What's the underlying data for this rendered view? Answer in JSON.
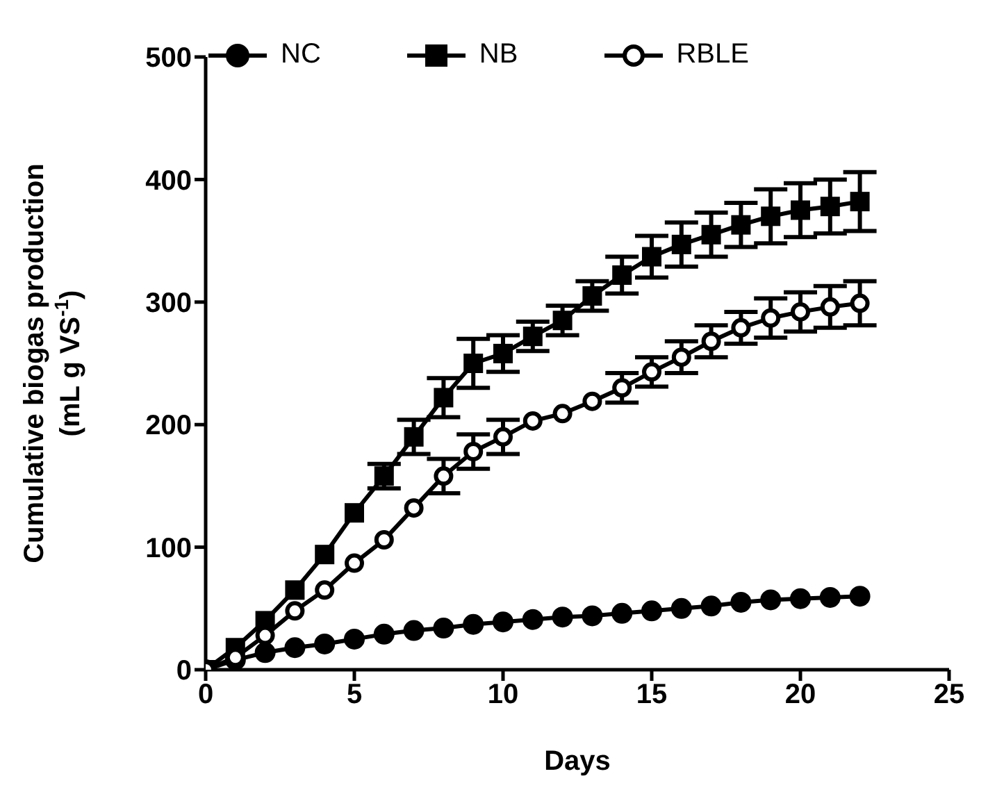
{
  "chart_data": {
    "type": "line",
    "xlabel": "Days",
    "ylabel": "Cumulative biogas production (mL g VS$^{-1}$)",
    "x": [
      0,
      1,
      2,
      3,
      4,
      5,
      6,
      7,
      8,
      9,
      10,
      11,
      12,
      13,
      14,
      15,
      16,
      17,
      18,
      19,
      20,
      21,
      22
    ],
    "series": [
      {
        "name": "NC",
        "color": "#000000",
        "marker": "circle",
        "values": [
          0,
          8,
          14,
          18,
          21,
          25,
          29,
          32,
          34,
          37,
          39,
          41,
          43,
          44,
          46,
          48,
          50,
          52,
          55,
          57,
          58,
          59,
          60
        ]
      },
      {
        "name": "NB",
        "color": "#000000",
        "marker": "square",
        "values": [
          0,
          18,
          40,
          65,
          94,
          128,
          158,
          190,
          222,
          250,
          258,
          272,
          285,
          305,
          322,
          337,
          347,
          355,
          363,
          370,
          375,
          378,
          382
        ],
        "errors": [
          null,
          null,
          null,
          null,
          null,
          null,
          10,
          14,
          16,
          20,
          15,
          12,
          12,
          12,
          15,
          17,
          18,
          18,
          18,
          22,
          22,
          22,
          24
        ]
      },
      {
        "name": "RBLE",
        "color": "#000000",
        "marker": "open circle",
        "values": [
          0,
          10,
          28,
          48,
          65,
          87,
          106,
          132,
          158,
          178,
          190,
          203,
          209,
          219,
          230,
          243,
          255,
          268,
          279,
          287,
          292,
          296,
          299
        ],
        "errors": [
          null,
          null,
          null,
          null,
          null,
          null,
          null,
          null,
          14,
          14,
          14,
          null,
          null,
          null,
          12,
          12,
          13,
          13,
          13,
          16,
          16,
          17,
          18
        ]
      }
    ],
    "xlim": [
      0,
      25
    ],
    "xticks": [
      0,
      5,
      10,
      15,
      20,
      25
    ],
    "ylim": [
      0,
      500
    ],
    "yticks": [
      0,
      100,
      200,
      300,
      400,
      500
    ],
    "grid": false,
    "legend": "top"
  }
}
